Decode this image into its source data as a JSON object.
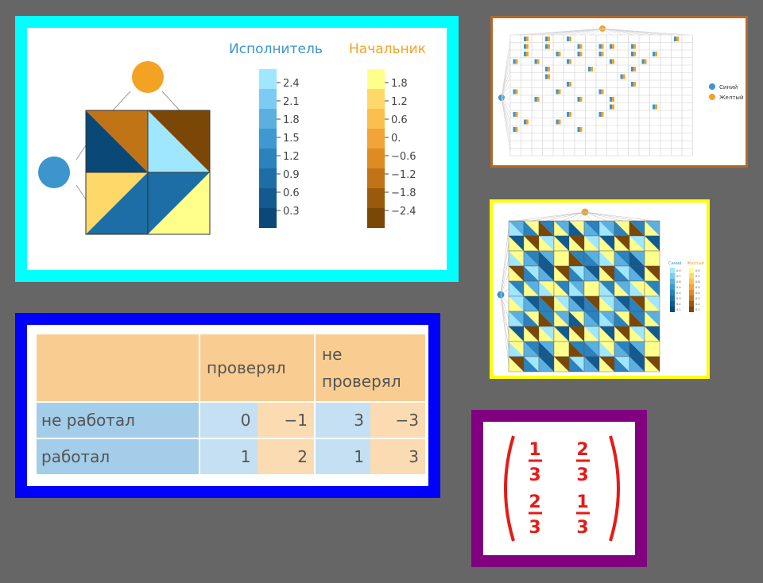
{
  "main_game": {
    "legend_executor": "Исполнитель",
    "legend_boss": "Начальник",
    "executor_ticks": [
      "2.4",
      "2.1",
      "1.8",
      "1.5",
      "1.2",
      "0.9",
      "0.6",
      "0.3"
    ],
    "boss_ticks": [
      "1.8",
      "1.2",
      "0.6",
      "0.",
      "−0.6",
      "−1.2",
      "−1.8",
      "−2.4"
    ],
    "colors": {
      "executor": [
        "#9fe6ff",
        "#7ccbf2",
        "#5bb0e0",
        "#3f98cf",
        "#2b82bc",
        "#1d6ea6",
        "#125a8f",
        "#0a4878"
      ],
      "boss": [
        "#ffff8a",
        "#ffd86a",
        "#fbbf4f",
        "#f0a43a",
        "#dc8c20",
        "#c07415",
        "#9a5a0c",
        "#7a4706"
      ],
      "node_top": "#f4a224",
      "node_left": "#3c95cc"
    }
  },
  "top_right": {
    "legend": [
      "Синий",
      "Желтый"
    ],
    "colors": {
      "blue": "#3c95cc",
      "yellow": "#f4a224"
    }
  },
  "mid_right": {
    "legend_left": "Синий",
    "legend_right": "Желтый",
    "left_ticks": [
      "0.9",
      "0.7",
      "0.6",
      "0.5",
      "0.4",
      "0.3",
      "0.2",
      "0.1"
    ],
    "right_ticks": [
      "0.9",
      "0.7",
      "0.6",
      "0.5",
      "0.4",
      "0.3",
      "0.2",
      "0.1"
    ]
  },
  "payoff_table": {
    "col_headers": [
      "проверял",
      "не проверял"
    ],
    "rows": [
      {
        "label": "не работал",
        "cells": [
          "0",
          "−1",
          "3",
          "−3"
        ]
      },
      {
        "label": "работал",
        "cells": [
          "1",
          "2",
          "1",
          "3"
        ]
      }
    ]
  },
  "matrix": {
    "cells": [
      {
        "num": "1",
        "den": "3"
      },
      {
        "num": "2",
        "den": "3"
      },
      {
        "num": "2",
        "den": "3"
      },
      {
        "num": "1",
        "den": "3"
      }
    ]
  }
}
